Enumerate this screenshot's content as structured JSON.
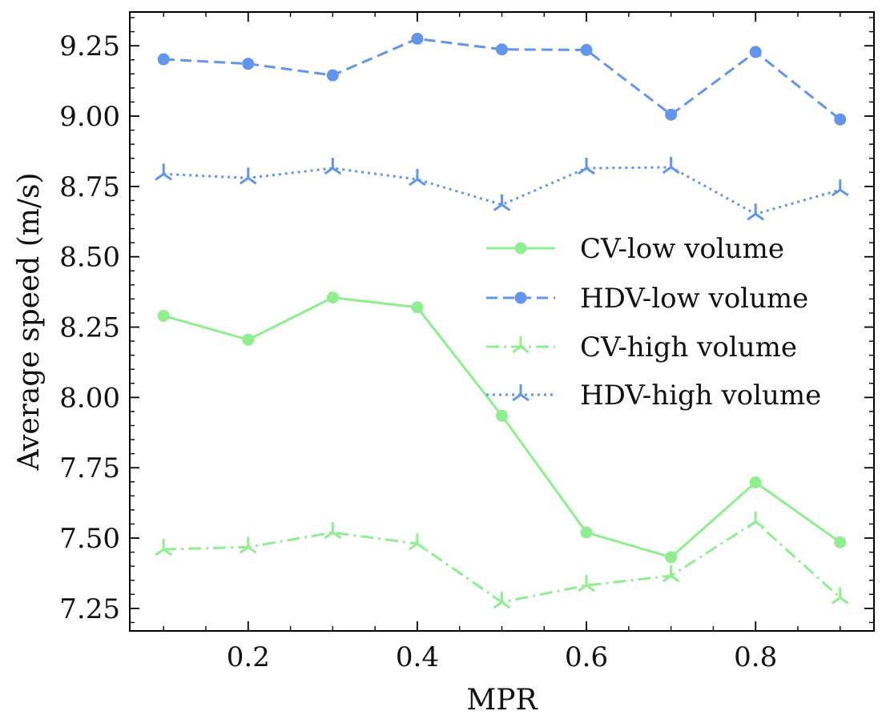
{
  "chart_data": {
    "type": "line",
    "title": "",
    "xlabel": "MPR",
    "ylabel": "Average speed (m/s)",
    "xlim": [
      0.06,
      0.94
    ],
    "ylim": [
      7.17,
      9.37
    ],
    "xticks": [
      0.2,
      0.4,
      0.6,
      0.8
    ],
    "xtick_labels": [
      "0.2",
      "0.4",
      "0.6",
      "0.8"
    ],
    "yticks": [
      7.25,
      7.5,
      7.75,
      8.0,
      8.25,
      8.5,
      8.75,
      9.0,
      9.25
    ],
    "ytick_labels": [
      "7.25",
      "7.50",
      "7.75",
      "8.00",
      "8.25",
      "8.50",
      "8.75",
      "9.00",
      "9.25"
    ],
    "x": [
      0.1,
      0.2,
      0.3,
      0.4,
      0.5,
      0.6,
      0.7,
      0.8,
      0.9
    ],
    "legend_position": "center-right",
    "series": [
      {
        "name": "CV-low volume",
        "color": "#90EE90",
        "linestyle": "solid",
        "marker": "circle",
        "values": [
          8.29,
          8.205,
          8.355,
          8.32,
          7.935,
          7.52,
          7.432,
          7.698,
          7.485
        ]
      },
      {
        "name": "HDV-low volume",
        "color": "#6495ED",
        "linestyle": "dashed",
        "marker": "circle",
        "values": [
          9.202,
          9.186,
          9.145,
          9.275,
          9.237,
          9.235,
          9.005,
          9.228,
          8.988
        ]
      },
      {
        "name": "CV-high volume",
        "color": "#90EE90",
        "linestyle": "dashdot",
        "marker": "tri_down",
        "values": [
          7.46,
          7.468,
          7.52,
          7.48,
          7.272,
          7.332,
          7.366,
          7.558,
          7.288
        ]
      },
      {
        "name": "HDV-high volume",
        "color": "#6495ED",
        "linestyle": "dotted",
        "marker": "tri_down",
        "values": [
          8.794,
          8.78,
          8.815,
          8.775,
          8.685,
          8.815,
          8.818,
          8.652,
          8.738
        ]
      }
    ]
  }
}
